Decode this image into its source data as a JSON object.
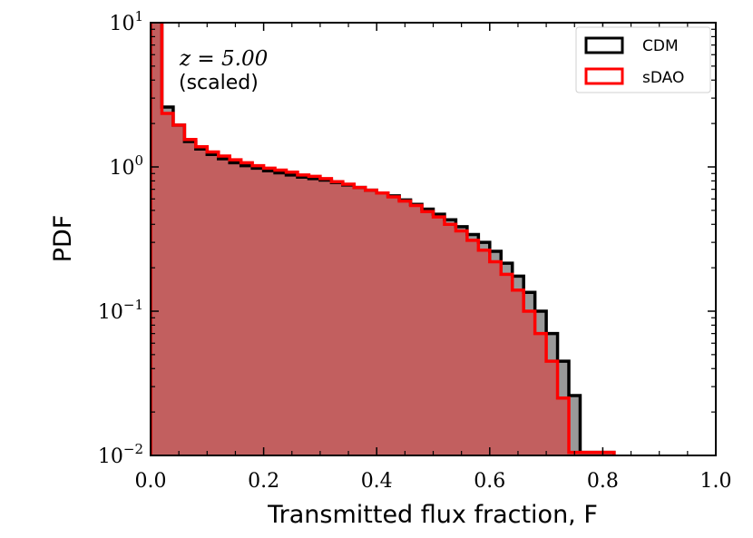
{
  "chart_data": {
    "type": "histogram-step",
    "xlabel": "Transmitted flux fraction, F",
    "ylabel": "PDF",
    "xlim": [
      0.0,
      1.0
    ],
    "ylim": [
      0.01,
      10
    ],
    "yscale": "log",
    "x_ticks": [
      "0.0",
      "0.2",
      "0.4",
      "0.6",
      "0.8",
      "1.0"
    ],
    "y_ticks": [
      {
        "value": 0.01,
        "base": "10",
        "exp": "−2"
      },
      {
        "value": 0.1,
        "base": "10",
        "exp": "−1"
      },
      {
        "value": 1,
        "base": "10",
        "exp": "0"
      },
      {
        "value": 10,
        "base": "10",
        "exp": "1"
      }
    ],
    "annotation": {
      "redshift": "z = 5.00",
      "note": "(scaled)"
    },
    "legend": {
      "position": "top-right"
    },
    "bin_edges": [
      0.0,
      0.02,
      0.04,
      0.06,
      0.08,
      0.1,
      0.12,
      0.14,
      0.16,
      0.18,
      0.2,
      0.22,
      0.24,
      0.26,
      0.28,
      0.3,
      0.32,
      0.34,
      0.36,
      0.38,
      0.4,
      0.42,
      0.44,
      0.46,
      0.48,
      0.5,
      0.52,
      0.54,
      0.56,
      0.58,
      0.6,
      0.62,
      0.64,
      0.66,
      0.68,
      0.7,
      0.72,
      0.74,
      0.76,
      0.78,
      0.8,
      0.82
    ],
    "series": [
      {
        "name": "CDM",
        "color": "#000000",
        "fill": "#999999",
        "values": [
          12,
          2.6,
          1.95,
          1.5,
          1.33,
          1.22,
          1.14,
          1.07,
          1.02,
          0.98,
          0.94,
          0.91,
          0.88,
          0.85,
          0.83,
          0.81,
          0.78,
          0.75,
          0.72,
          0.69,
          0.66,
          0.63,
          0.59,
          0.55,
          0.51,
          0.47,
          0.43,
          0.385,
          0.34,
          0.3,
          0.26,
          0.215,
          0.175,
          0.135,
          0.1,
          0.07,
          0.045,
          0.026,
          0.0105,
          0.0105,
          0.0105
        ]
      },
      {
        "name": "sDAO",
        "color": "#ff0000",
        "fill": "#c55a5a",
        "values": [
          12,
          2.35,
          1.95,
          1.55,
          1.38,
          1.27,
          1.19,
          1.12,
          1.07,
          1.02,
          0.98,
          0.95,
          0.92,
          0.88,
          0.86,
          0.83,
          0.79,
          0.76,
          0.72,
          0.69,
          0.66,
          0.62,
          0.58,
          0.54,
          0.49,
          0.45,
          0.4,
          0.36,
          0.31,
          0.265,
          0.22,
          0.18,
          0.14,
          0.1,
          0.07,
          0.045,
          0.025,
          0.0105,
          0.0105,
          0.0105,
          0.0105
        ]
      }
    ]
  }
}
